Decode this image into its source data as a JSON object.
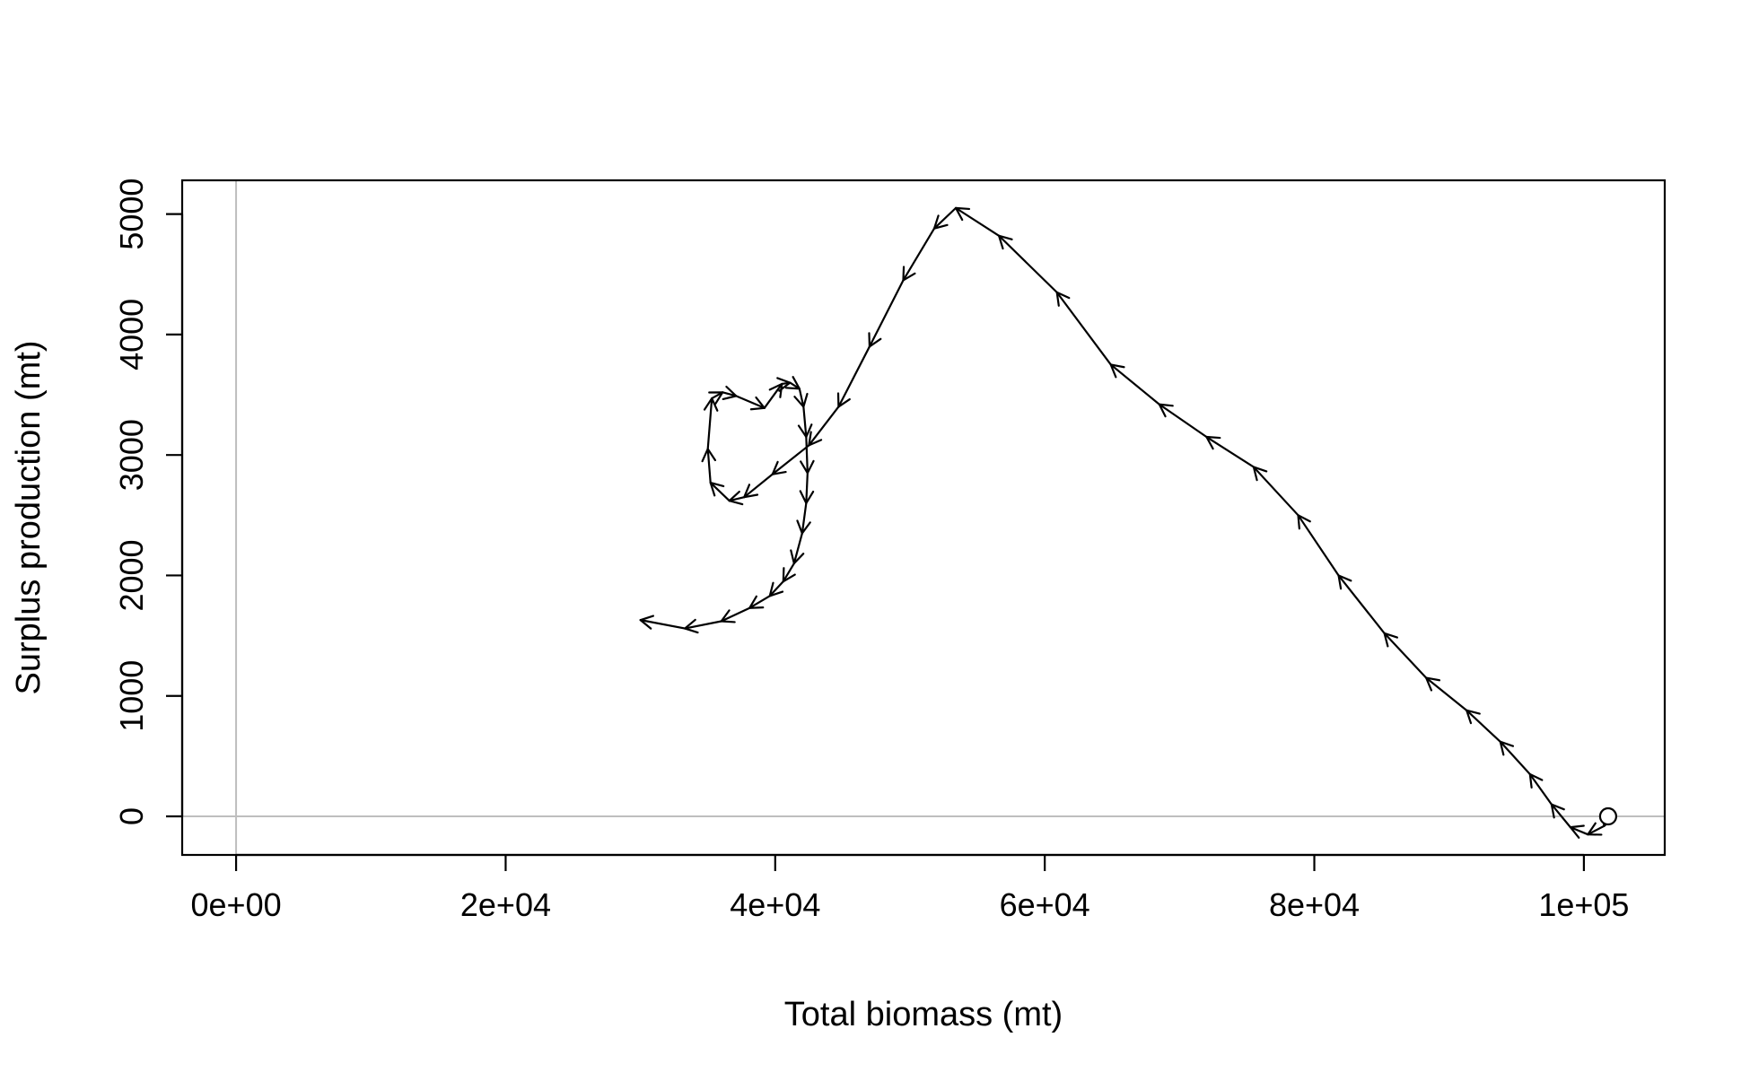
{
  "chart_data": {
    "type": "line",
    "title": "",
    "xlabel": "Total biomass (mt)",
    "ylabel": "Surplus production (mt)",
    "xlim": [
      -4000,
      106000
    ],
    "ylim": [
      -320,
      5280
    ],
    "x_ticks": [
      {
        "value": 0,
        "label": "0e+00"
      },
      {
        "value": 20000,
        "label": "2e+04"
      },
      {
        "value": 40000,
        "label": "4e+04"
      },
      {
        "value": 60000,
        "label": "6e+04"
      },
      {
        "value": 80000,
        "label": "8e+04"
      },
      {
        "value": 100000,
        "label": "1e+05"
      }
    ],
    "y_ticks": [
      {
        "value": 0,
        "label": "0"
      },
      {
        "value": 1000,
        "label": "1000"
      },
      {
        "value": 2000,
        "label": "2000"
      },
      {
        "value": 3000,
        "label": "3000"
      },
      {
        "value": 4000,
        "label": "4000"
      },
      {
        "value": 5000,
        "label": "5000"
      }
    ],
    "reference_lines": {
      "x": 0,
      "y": 0,
      "color": "#bebebe"
    },
    "grid": false,
    "line_color": "#000000",
    "arrows": true,
    "start_marker": "open-circle",
    "series": [
      {
        "x": [
          101800,
          101500,
          100300,
          99000,
          97600,
          96000,
          93800,
          91300,
          88300,
          85200,
          81800,
          78800,
          75500,
          72000,
          68500,
          64900,
          60900,
          56600,
          53400,
          51800,
          49500,
          47000,
          44700,
          42500,
          39800,
          37700,
          36600,
          35200,
          35000,
          35300,
          36100,
          37100,
          39200,
          40500,
          41100,
          41800,
          42100,
          42300,
          42400,
          42300,
          42000,
          41400,
          40600,
          39600,
          38100,
          36000,
          33300,
          30000
        ],
        "y": [
          0,
          -80,
          -150,
          -90,
          100,
          350,
          620,
          880,
          1150,
          1520,
          2000,
          2500,
          2900,
          3150,
          3420,
          3750,
          4350,
          4820,
          5050,
          4880,
          4450,
          3900,
          3400,
          3080,
          2840,
          2650,
          2620,
          2770,
          3050,
          3470,
          3520,
          3490,
          3390,
          3590,
          3600,
          3550,
          3400,
          3150,
          2850,
          2600,
          2350,
          2100,
          1950,
          1830,
          1730,
          1620,
          1560,
          1630
        ]
      }
    ]
  }
}
